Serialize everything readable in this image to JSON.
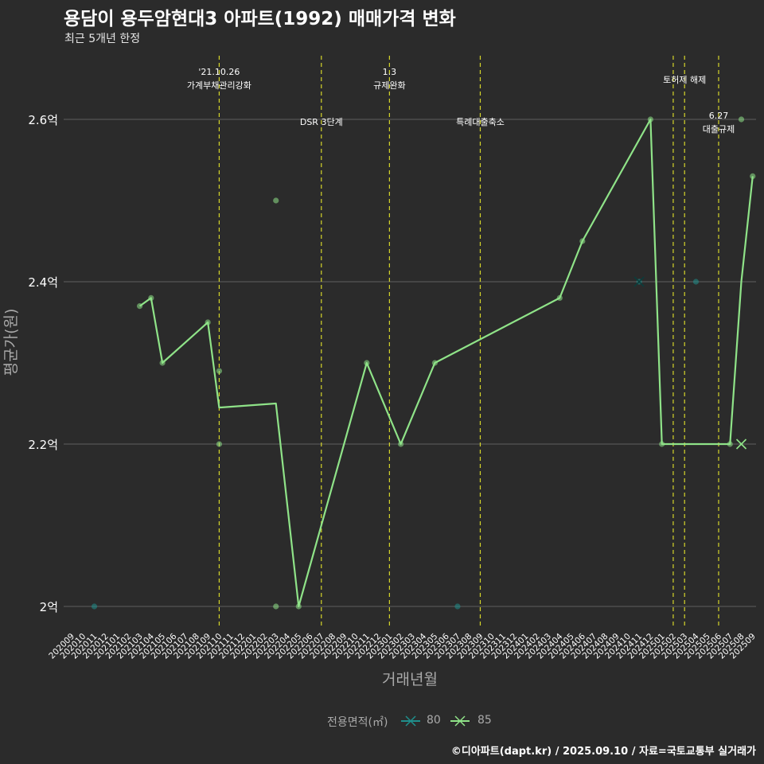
{
  "header": {
    "title": "용담이 용두암현대3 아파트(1992) 매매가격 변화",
    "subtitle": "최근 5개년 한정"
  },
  "caption": "©디아파트(dapt.kr) / 2025.09.10 / 자료=국토교통부 실거래가",
  "legend": {
    "title": "전용면적(㎡)",
    "items": [
      {
        "label": "80",
        "color": "#1f8f8c"
      },
      {
        "label": "85",
        "color": "#8fe388"
      }
    ]
  },
  "colors": {
    "background": "#2b2b2b",
    "grid": "#5f5f5f",
    "vline": "#d6d62a",
    "series85": "#8fe388",
    "series80": "#1f8f8c",
    "axis_text": "#a9a9a9"
  },
  "chart_data": {
    "type": "line",
    "title": "용담이 용두암현대3 아파트(1992) 매매가격 변화",
    "xlabel": "거래년월",
    "ylabel": "평균가(원)",
    "ylim": [
      1.97,
      2.68
    ],
    "yticks": [
      {
        "value": 2.0,
        "label": "2억"
      },
      {
        "value": 2.2,
        "label": "2.2억"
      },
      {
        "value": 2.4,
        "label": "2.4억"
      },
      {
        "value": 2.6,
        "label": "2.6억"
      }
    ],
    "categories": [
      "202009",
      "202010",
      "202011",
      "202012",
      "202101",
      "202102",
      "202103",
      "202104",
      "202105",
      "202106",
      "202107",
      "202108",
      "202109",
      "202110",
      "202111",
      "202112",
      "202201",
      "202202",
      "202203",
      "202204",
      "202205",
      "202206",
      "202207",
      "202208",
      "202209",
      "202210",
      "202211",
      "202212",
      "202301",
      "202302",
      "202303",
      "202304",
      "202305",
      "202306",
      "202307",
      "202308",
      "202309",
      "202310",
      "202311",
      "202312",
      "202401",
      "202402",
      "202403",
      "202404",
      "202405",
      "202406",
      "202407",
      "202408",
      "202409",
      "202410",
      "202411",
      "202412",
      "202501",
      "202502",
      "202503",
      "202504",
      "202505",
      "202506",
      "202507",
      "202508",
      "202509"
    ],
    "series": [
      {
        "name": "85",
        "line": [
          {
            "x": "202103",
            "y": 2.37
          },
          {
            "x": "202104",
            "y": 2.38
          },
          {
            "x": "202105",
            "y": 2.3
          },
          {
            "x": "202109",
            "y": 2.35
          },
          {
            "x": "202110",
            "y": 2.245
          },
          {
            "x": "202203",
            "y": 2.25
          },
          {
            "x": "202205",
            "y": 2.0
          },
          {
            "x": "202211",
            "y": 2.3
          },
          {
            "x": "202302",
            "y": 2.2
          },
          {
            "x": "202305",
            "y": 2.3
          },
          {
            "x": "202404",
            "y": 2.38
          },
          {
            "x": "202406",
            "y": 2.45
          },
          {
            "x": "202412",
            "y": 2.6
          },
          {
            "x": "202501",
            "y": 2.2
          },
          {
            "x": "202507",
            "y": 2.2
          },
          {
            "x": "202508",
            "y": 2.4
          },
          {
            "x": "202509",
            "y": 2.53
          }
        ],
        "points": [
          {
            "x": "202103",
            "y": 2.37
          },
          {
            "x": "202104",
            "y": 2.38
          },
          {
            "x": "202105",
            "y": 2.3
          },
          {
            "x": "202109",
            "y": 2.35
          },
          {
            "x": "202110",
            "y": 2.29
          },
          {
            "x": "202110",
            "y": 2.2
          },
          {
            "x": "202203",
            "y": 2.5
          },
          {
            "x": "202203",
            "y": 2.0
          },
          {
            "x": "202205",
            "y": 2.0
          },
          {
            "x": "202211",
            "y": 2.3
          },
          {
            "x": "202302",
            "y": 2.2
          },
          {
            "x": "202305",
            "y": 2.3
          },
          {
            "x": "202404",
            "y": 2.38
          },
          {
            "x": "202406",
            "y": 2.45
          },
          {
            "x": "202412",
            "y": 2.6
          },
          {
            "x": "202501",
            "y": 2.2
          },
          {
            "x": "202507",
            "y": 2.2
          },
          {
            "x": "202508",
            "y": 2.6
          },
          {
            "x": "202509",
            "y": 2.53
          }
        ],
        "cross_markers": [
          {
            "x": "202508",
            "y": 2.2
          }
        ]
      },
      {
        "name": "80",
        "line": [],
        "points": [
          {
            "x": "202011",
            "y": 2.0
          },
          {
            "x": "202307",
            "y": 2.0
          },
          {
            "x": "202411",
            "y": 2.4
          },
          {
            "x": "202504",
            "y": 2.4
          }
        ],
        "cross_markers": [
          {
            "x": "202411",
            "y": 2.4
          }
        ]
      }
    ],
    "annotations": [
      {
        "x": "202110",
        "lines": [
          "'21.10.26",
          "가계부채관리강화"
        ],
        "level": "top"
      },
      {
        "x": "202207",
        "lines": [
          "DSR 3단계"
        ],
        "level": "mid"
      },
      {
        "x": "202301",
        "lines": [
          "1.3",
          "규제완화"
        ],
        "level": "top"
      },
      {
        "x": "202309",
        "lines": [
          "특례대출축소"
        ],
        "level": "mid"
      },
      {
        "x": "202502",
        "lines": [],
        "level": "none"
      },
      {
        "x": "202503",
        "lines": [
          "토허제 해제"
        ],
        "level": "top2"
      },
      {
        "x": "202506",
        "lines": [
          "6.27",
          "대출규제"
        ],
        "level": "low"
      }
    ]
  }
}
